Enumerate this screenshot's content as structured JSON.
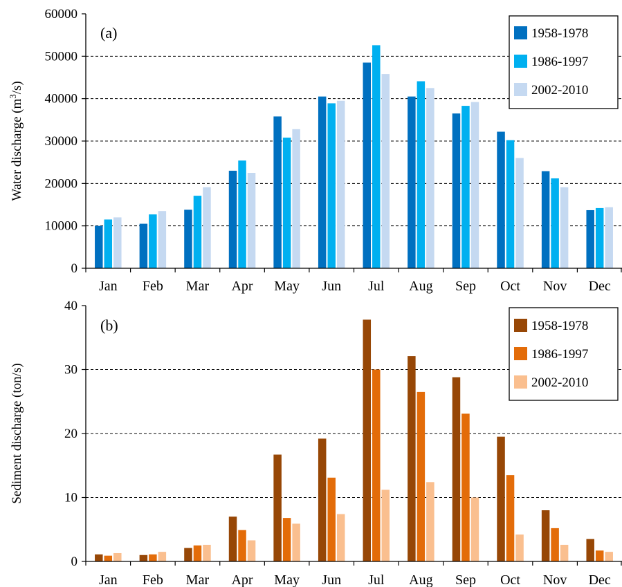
{
  "chart_data": [
    {
      "type": "bar",
      "panel_label": "(a)",
      "title": "",
      "xlabel": "",
      "ylabel": "Water discharge (m",
      "ylabel_sup": "3",
      "ylabel_suffix": "/s)",
      "ylim": [
        0,
        60000
      ],
      "yticks": [
        0,
        10000,
        20000,
        30000,
        40000,
        50000,
        60000
      ],
      "grid": "horizontal dashed",
      "legend_position": "top-right",
      "categories": [
        "Jan",
        "Feb",
        "Mar",
        "Apr",
        "May",
        "Jun",
        "Jul",
        "Aug",
        "Sep",
        "Oct",
        "Nov",
        "Dec"
      ],
      "series": [
        {
          "name": "1958-1978",
          "color": "#0070C0",
          "values": [
            10000,
            10500,
            13800,
            23000,
            35800,
            40500,
            48500,
            40500,
            36500,
            32200,
            22900,
            13700
          ]
        },
        {
          "name": "1986-1997",
          "color": "#00B0F0",
          "values": [
            11500,
            12700,
            17100,
            25400,
            30800,
            38900,
            52600,
            44100,
            38300,
            30200,
            21200,
            14200
          ]
        },
        {
          "name": "2002-2010",
          "color": "#C5D9F1",
          "values": [
            12000,
            13500,
            19100,
            22500,
            32800,
            39500,
            45800,
            42500,
            39200,
            26000,
            19100,
            14400
          ]
        }
      ]
    },
    {
      "type": "bar",
      "panel_label": "(b)",
      "title": "",
      "xlabel": "",
      "ylabel": "Sediment discharge (ton/s)",
      "ylim": [
        0,
        40
      ],
      "yticks": [
        0,
        10,
        20,
        30,
        40
      ],
      "grid": "horizontal dashed",
      "legend_position": "top-right",
      "categories": [
        "Jan",
        "Feb",
        "Mar",
        "Apr",
        "May",
        "Jun",
        "Jul",
        "Aug",
        "Sep",
        "Oct",
        "Nov",
        "Dec"
      ],
      "series": [
        {
          "name": "1958-1978",
          "color": "#974706",
          "values": [
            1.1,
            1.0,
            2.1,
            7.0,
            16.7,
            19.2,
            37.8,
            32.1,
            28.8,
            19.5,
            8.0,
            3.5
          ]
        },
        {
          "name": "1986-1997",
          "color": "#E36C09",
          "values": [
            0.9,
            1.1,
            2.5,
            4.9,
            6.8,
            13.1,
            30.0,
            26.5,
            23.1,
            13.5,
            5.2,
            1.7
          ]
        },
        {
          "name": "2002-2010",
          "color": "#FABF8F",
          "values": [
            1.3,
            1.5,
            2.6,
            3.3,
            5.9,
            7.4,
            11.2,
            12.4,
            10.0,
            4.2,
            2.6,
            1.5
          ]
        }
      ]
    }
  ]
}
